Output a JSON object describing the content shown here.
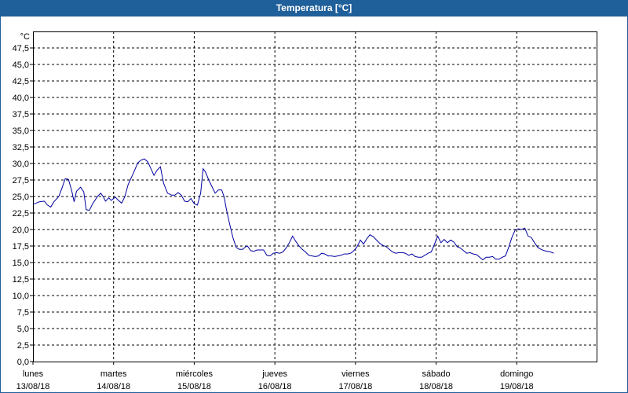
{
  "window": {
    "title": "Temperatura [°C]"
  },
  "chart_data": {
    "type": "line",
    "title": "Temperatura [°C]",
    "ylabel": "°C",
    "xlabel": "",
    "ylim": [
      0,
      50
    ],
    "xlim": [
      0,
      7
    ],
    "grid": true,
    "y_ticks": [
      "0,0",
      "2,5",
      "5,0",
      "7,5",
      "10,0",
      "12,5",
      "15,0",
      "17,5",
      "20,0",
      "22,5",
      "25,0",
      "27,5",
      "30,0",
      "32,5",
      "35,0",
      "37,5",
      "40,0",
      "42,5",
      "45,0",
      "47,5"
    ],
    "x_ticks": [
      {
        "day": "lunes",
        "date": "13/08/18"
      },
      {
        "day": "martes",
        "date": "14/08/18"
      },
      {
        "day": "miércoles",
        "date": "15/08/18"
      },
      {
        "day": "jueves",
        "date": "16/08/18"
      },
      {
        "day": "viernes",
        "date": "17/08/18"
      },
      {
        "day": "sábado",
        "date": "18/08/18"
      },
      {
        "day": "domingo",
        "date": "19/08/18"
      }
    ],
    "series": [
      {
        "color": "#0000a0",
        "points": [
          [
            0.0,
            23.8
          ],
          [
            0.08,
            24.2
          ],
          [
            0.14,
            24.3
          ],
          [
            0.18,
            23.7
          ],
          [
            0.22,
            23.4
          ],
          [
            0.26,
            24.2
          ],
          [
            0.32,
            25.0
          ],
          [
            0.36,
            26.3
          ],
          [
            0.4,
            27.7
          ],
          [
            0.44,
            27.6
          ],
          [
            0.48,
            25.9
          ],
          [
            0.51,
            24.2
          ],
          [
            0.54,
            25.8
          ],
          [
            0.59,
            26.4
          ],
          [
            0.63,
            25.7
          ],
          [
            0.66,
            23.0
          ],
          [
            0.7,
            22.9
          ],
          [
            0.74,
            23.9
          ],
          [
            0.8,
            25.0
          ],
          [
            0.84,
            25.5
          ],
          [
            0.87,
            25.0
          ],
          [
            0.9,
            24.3
          ],
          [
            0.94,
            24.8
          ],
          [
            0.97,
            24.4
          ],
          [
            1.02,
            24.9
          ],
          [
            1.06,
            24.4
          ],
          [
            1.1,
            24.0
          ],
          [
            1.14,
            25.0
          ],
          [
            1.18,
            26.8
          ],
          [
            1.24,
            28.4
          ],
          [
            1.3,
            30.1
          ],
          [
            1.34,
            30.5
          ],
          [
            1.38,
            30.7
          ],
          [
            1.42,
            30.3
          ],
          [
            1.46,
            29.3
          ],
          [
            1.5,
            28.2
          ],
          [
            1.54,
            29.0
          ],
          [
            1.58,
            29.5
          ],
          [
            1.62,
            27.0
          ],
          [
            1.67,
            25.5
          ],
          [
            1.72,
            25.2
          ],
          [
            1.76,
            25.2
          ],
          [
            1.8,
            25.6
          ],
          [
            1.84,
            25.2
          ],
          [
            1.88,
            24.3
          ],
          [
            1.92,
            24.2
          ],
          [
            1.96,
            24.7
          ],
          [
            2.0,
            23.9
          ],
          [
            2.04,
            23.7
          ],
          [
            2.08,
            25.5
          ],
          [
            2.11,
            29.2
          ],
          [
            2.14,
            28.7
          ],
          [
            2.18,
            27.5
          ],
          [
            2.22,
            26.5
          ],
          [
            2.26,
            25.5
          ],
          [
            2.3,
            26.0
          ],
          [
            2.34,
            26.0
          ],
          [
            2.37,
            25.0
          ],
          [
            2.4,
            23.0
          ],
          [
            2.44,
            20.8
          ],
          [
            2.48,
            18.8
          ],
          [
            2.52,
            17.3
          ],
          [
            2.56,
            17.0
          ],
          [
            2.6,
            17.0
          ],
          [
            2.64,
            17.4
          ],
          [
            2.66,
            17.5
          ],
          [
            2.7,
            16.8
          ],
          [
            2.74,
            16.7
          ],
          [
            2.78,
            16.9
          ],
          [
            2.82,
            16.9
          ],
          [
            2.86,
            16.9
          ],
          [
            2.9,
            16.1
          ],
          [
            2.94,
            16.0
          ],
          [
            2.98,
            16.4
          ],
          [
            3.02,
            16.5
          ],
          [
            3.06,
            16.4
          ],
          [
            3.1,
            16.6
          ],
          [
            3.14,
            17.2
          ],
          [
            3.18,
            18.0
          ],
          [
            3.22,
            19.0
          ],
          [
            3.26,
            18.2
          ],
          [
            3.3,
            17.5
          ],
          [
            3.34,
            17.0
          ],
          [
            3.38,
            16.6
          ],
          [
            3.42,
            16.1
          ],
          [
            3.46,
            16.0
          ],
          [
            3.5,
            15.9
          ],
          [
            3.54,
            16.0
          ],
          [
            3.58,
            16.4
          ],
          [
            3.62,
            16.3
          ],
          [
            3.66,
            16.0
          ],
          [
            3.7,
            16.0
          ],
          [
            3.74,
            15.9
          ],
          [
            3.78,
            16.0
          ],
          [
            3.82,
            16.1
          ],
          [
            3.86,
            16.3
          ],
          [
            3.9,
            16.3
          ],
          [
            3.94,
            16.4
          ],
          [
            3.98,
            16.8
          ],
          [
            4.02,
            17.4
          ],
          [
            4.06,
            18.4
          ],
          [
            4.1,
            17.8
          ],
          [
            4.14,
            18.6
          ],
          [
            4.18,
            19.2
          ],
          [
            4.22,
            18.9
          ],
          [
            4.26,
            18.4
          ],
          [
            4.3,
            17.9
          ],
          [
            4.34,
            17.6
          ],
          [
            4.38,
            17.4
          ],
          [
            4.42,
            17.0
          ],
          [
            4.46,
            16.6
          ],
          [
            4.5,
            16.4
          ],
          [
            4.54,
            16.5
          ],
          [
            4.58,
            16.5
          ],
          [
            4.62,
            16.4
          ],
          [
            4.66,
            16.1
          ],
          [
            4.7,
            16.3
          ],
          [
            4.74,
            15.9
          ],
          [
            4.78,
            15.8
          ],
          [
            4.82,
            15.8
          ],
          [
            4.86,
            16.1
          ],
          [
            4.9,
            16.4
          ],
          [
            4.94,
            16.6
          ],
          [
            4.98,
            17.8
          ],
          [
            5.02,
            19.0
          ],
          [
            5.06,
            18.0
          ],
          [
            5.1,
            18.5
          ],
          [
            5.14,
            18.0
          ],
          [
            5.18,
            18.4
          ],
          [
            5.22,
            18.1
          ],
          [
            5.26,
            17.4
          ],
          [
            5.3,
            17.2
          ],
          [
            5.34,
            16.8
          ],
          [
            5.38,
            16.4
          ],
          [
            5.42,
            16.5
          ],
          [
            5.46,
            16.3
          ],
          [
            5.5,
            16.2
          ],
          [
            5.54,
            15.8
          ],
          [
            5.58,
            15.4
          ],
          [
            5.62,
            15.8
          ],
          [
            5.66,
            15.8
          ],
          [
            5.7,
            15.9
          ],
          [
            5.74,
            15.5
          ],
          [
            5.78,
            15.5
          ],
          [
            5.82,
            15.8
          ],
          [
            5.86,
            16.0
          ],
          [
            5.9,
            17.3
          ],
          [
            5.94,
            18.8
          ],
          [
            5.98,
            19.9
          ],
          [
            6.02,
            20.1
          ],
          [
            6.06,
            20.0
          ],
          [
            6.1,
            20.2
          ],
          [
            6.14,
            19.0
          ],
          [
            6.18,
            18.8
          ],
          [
            6.22,
            18.0
          ],
          [
            6.26,
            17.3
          ],
          [
            6.3,
            17.0
          ],
          [
            6.34,
            16.8
          ],
          [
            6.38,
            16.7
          ],
          [
            6.42,
            16.6
          ],
          [
            6.46,
            16.4
          ]
        ]
      }
    ]
  }
}
